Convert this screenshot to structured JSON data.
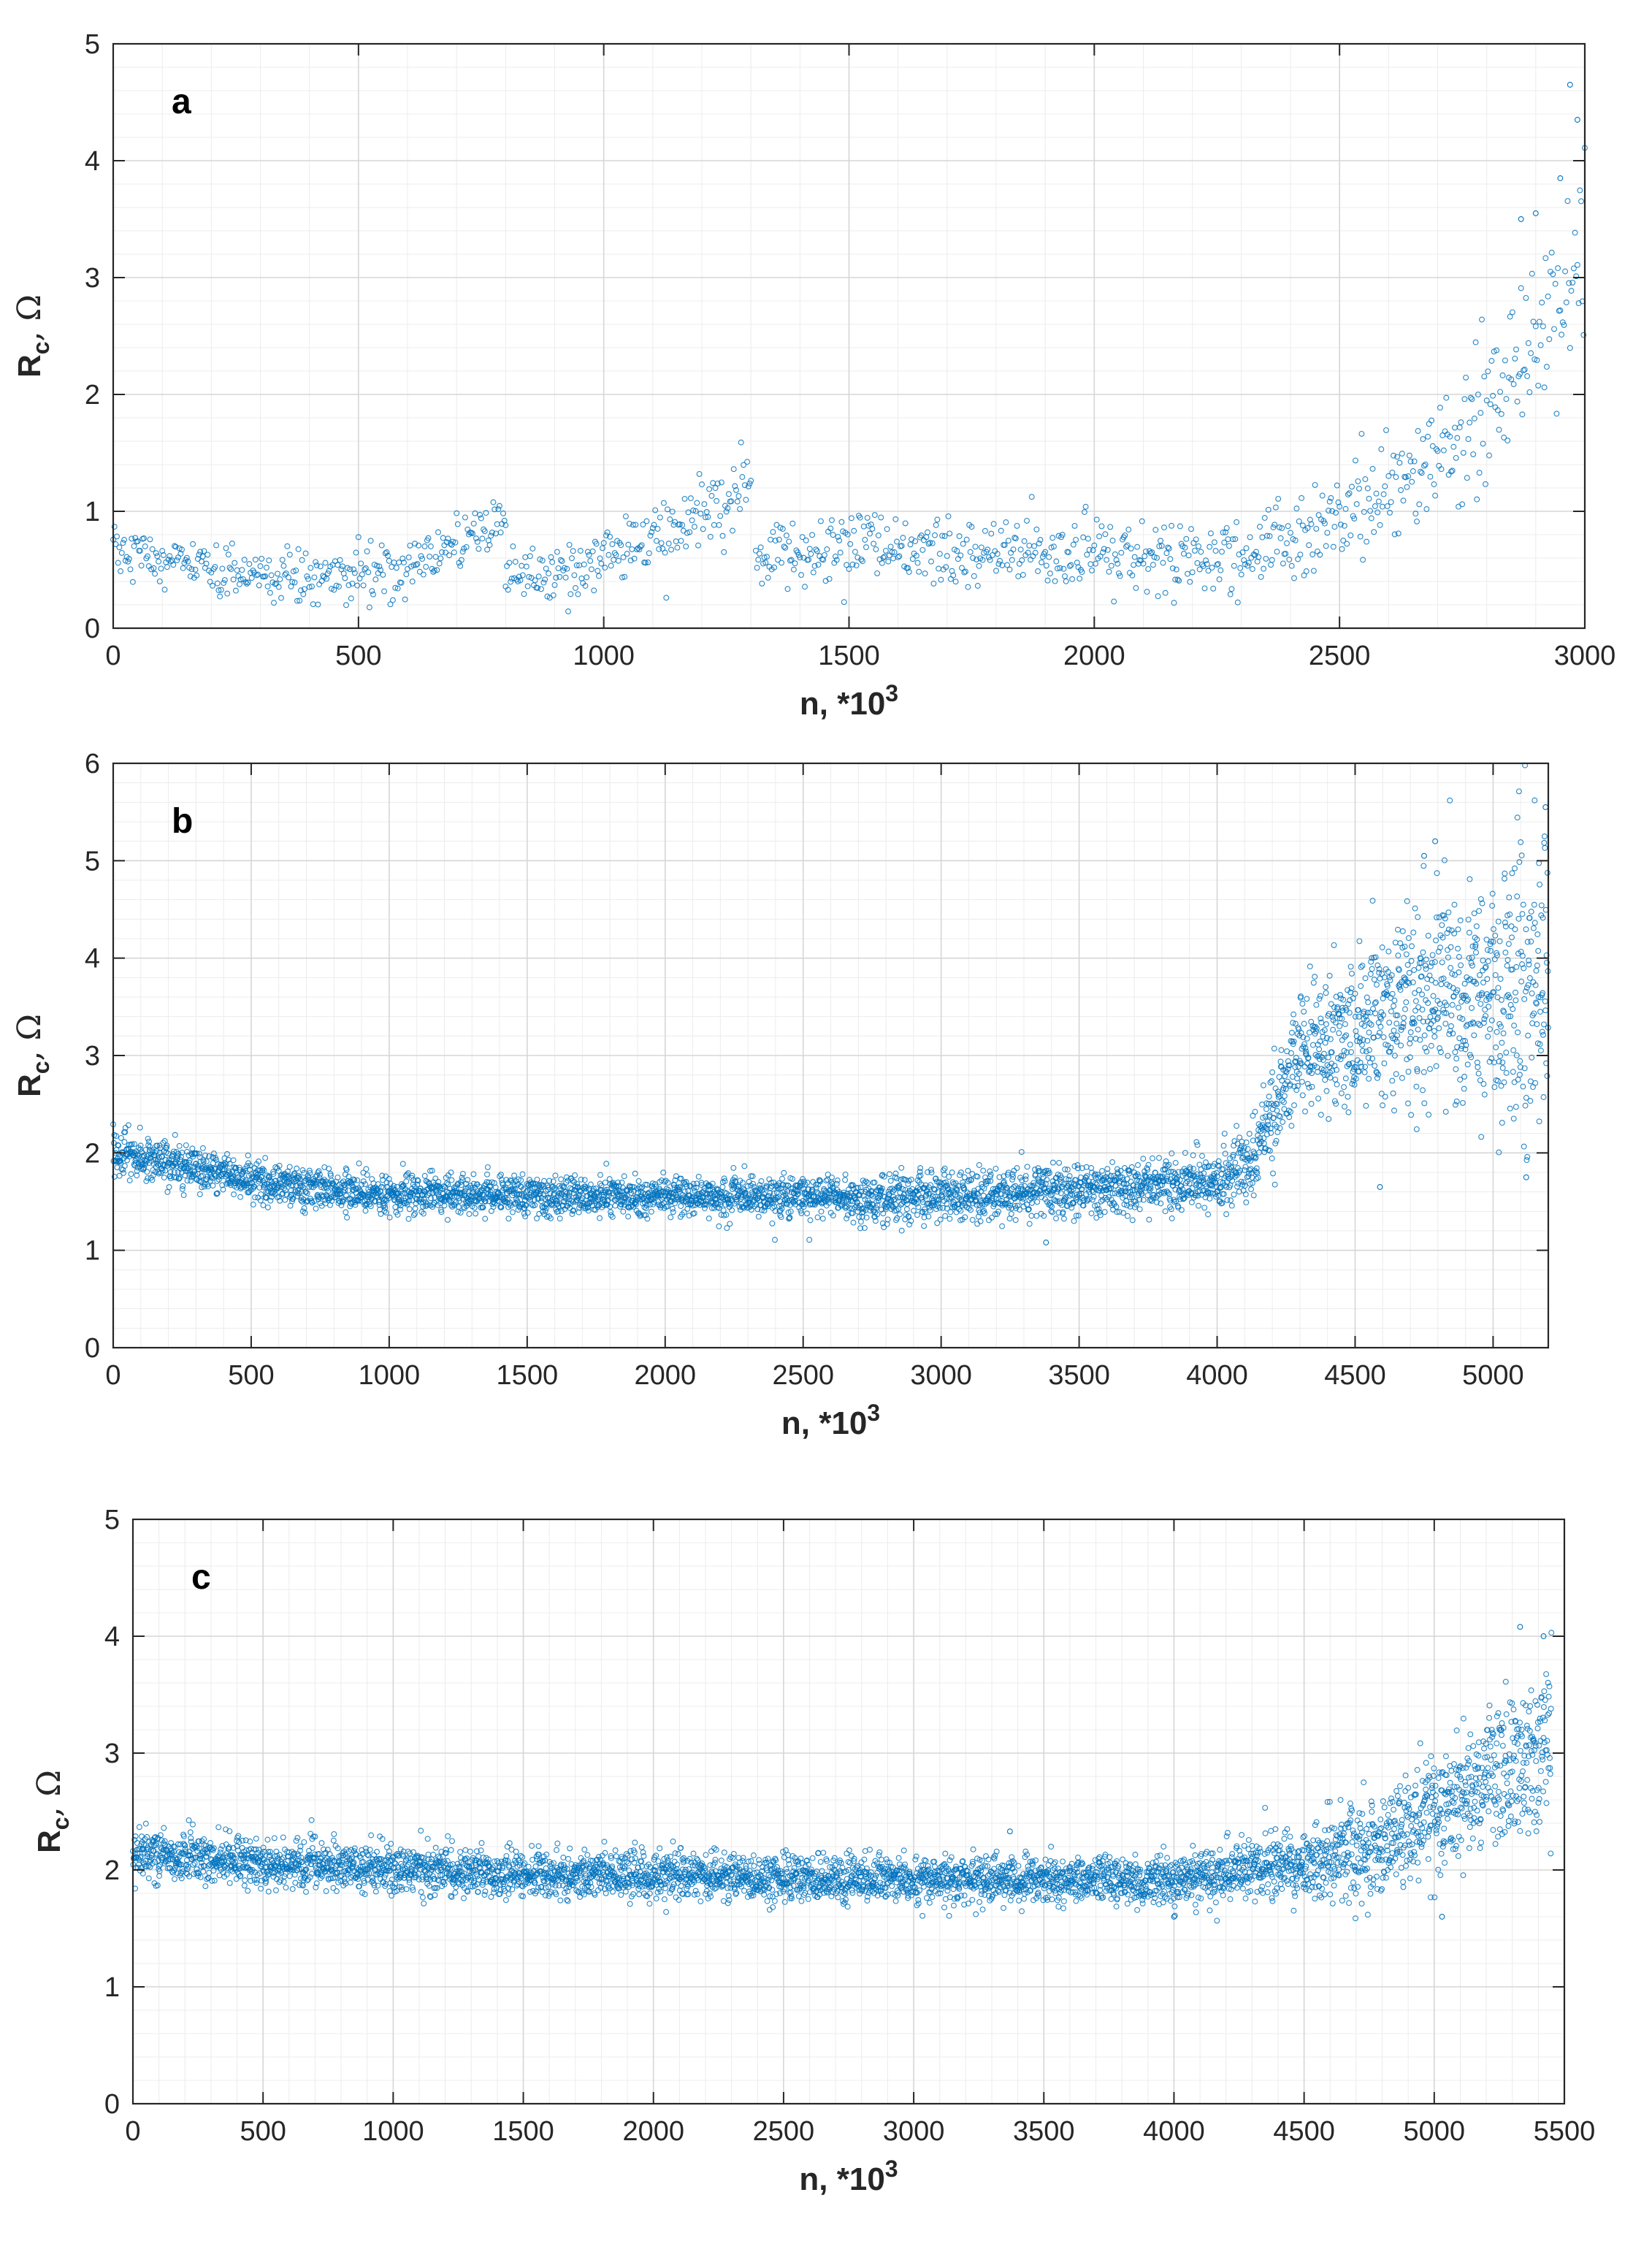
{
  "figure": {
    "marker_color": "#0072BD",
    "axis_color": "#262626"
  },
  "chart_data": [
    {
      "type": "scatter",
      "panel_label": "a",
      "xlabel": "n, *10",
      "xlabel_sup": "3",
      "ylabel": "R",
      "ylabel_sub": "c",
      "ylabel_unit": ", Ω",
      "xlim": [
        0,
        3000
      ],
      "ylim": [
        0,
        5
      ],
      "xticks": [
        0,
        500,
        1000,
        1500,
        2000,
        2500,
        3000
      ],
      "yticks": [
        0,
        1,
        2,
        3,
        4,
        5
      ],
      "x_step": 2.5,
      "segments": [
        {
          "x": [
            0,
            250,
            550,
            800
          ],
          "mean": [
            0.7,
            0.42,
            0.45,
            0.95
          ],
          "spread": [
            0.12,
            0.12,
            0.13,
            0.1
          ]
        },
        {
          "x": [
            800,
            950,
            1150,
            1300
          ],
          "mean": [
            0.42,
            0.5,
            0.85,
            1.2
          ],
          "spread": [
            0.1,
            0.12,
            0.14,
            0.14
          ]
        },
        {
          "x": [
            1310,
            1600,
            2000,
            2300,
            2500,
            2700,
            2850,
            3000
          ],
          "mean": [
            0.62,
            0.68,
            0.62,
            0.62,
            0.9,
            1.45,
            2.2,
            3.0
          ],
          "spread": [
            0.13,
            0.14,
            0.15,
            0.17,
            0.22,
            0.3,
            0.38,
            0.5
          ]
        }
      ],
      "outliers": [
        [
          2970,
          4.65
        ],
        [
          2985,
          4.35
        ],
        [
          2950,
          3.85
        ],
        [
          2900,
          3.55
        ],
        [
          2870,
          3.5
        ]
      ]
    },
    {
      "type": "scatter",
      "panel_label": "b",
      "xlabel": "n, *10",
      "xlabel_sup": "3",
      "ylabel": "R",
      "ylabel_sub": "c",
      "ylabel_unit": ", Ω",
      "xlim": [
        0,
        5200
      ],
      "ylim": [
        0,
        6
      ],
      "xticks": [
        0,
        500,
        1000,
        1500,
        2000,
        2500,
        3000,
        3500,
        4000,
        4500,
        5000
      ],
      "yticks": [
        0,
        1,
        2,
        3,
        4,
        5,
        6
      ],
      "x_step": 1.2,
      "segments": [
        {
          "x": [
            0,
            500,
            1000,
            2000,
            3000,
            3500,
            4000,
            4100,
            4200,
            4300,
            4500,
            4700,
            5000,
            5200
          ],
          "mean": [
            2.0,
            1.72,
            1.58,
            1.55,
            1.55,
            1.62,
            1.7,
            1.85,
            2.4,
            3.05,
            3.25,
            3.5,
            3.6,
            3.9
          ],
          "spread": [
            0.1,
            0.1,
            0.1,
            0.1,
            0.12,
            0.13,
            0.14,
            0.2,
            0.25,
            0.3,
            0.4,
            0.5,
            0.6,
            0.75
          ]
        }
      ],
      "outliers": [
        [
          5190,
          5.55
        ],
        [
          4790,
          5.2
        ],
        [
          4750,
          5.05
        ],
        [
          3380,
          1.08
        ],
        [
          4590,
          1.65
        ],
        [
          5120,
          1.75
        ]
      ]
    },
    {
      "type": "scatter",
      "panel_label": "c",
      "xlabel": "n, *10",
      "xlabel_sup": "3",
      "ylabel": "R",
      "ylabel_sub": "c",
      "ylabel_unit": ", Ω",
      "xlim": [
        0,
        5500
      ],
      "ylim": [
        0,
        5
      ],
      "xticks": [
        0,
        500,
        1000,
        1500,
        2000,
        2500,
        3000,
        3500,
        4000,
        4500,
        5000,
        5500
      ],
      "yticks": [
        0,
        1,
        2,
        3,
        4,
        5
      ],
      "x_step": 1.25,
      "segments": [
        {
          "x": [
            0,
            500,
            1000,
            2000,
            3000,
            3500,
            4000,
            4200,
            4500,
            4800,
            5000,
            5200,
            5450
          ],
          "mean": [
            2.15,
            2.05,
            2.0,
            1.95,
            1.92,
            1.92,
            1.9,
            2.0,
            2.05,
            2.2,
            2.45,
            2.75,
            3.1
          ],
          "spread": [
            0.1,
            0.1,
            0.1,
            0.1,
            0.1,
            0.1,
            0.1,
            0.12,
            0.16,
            0.2,
            0.25,
            0.3,
            0.4
          ]
        }
      ],
      "outliers": [
        [
          5330,
          4.08
        ],
        [
          5420,
          4.0
        ],
        [
          3370,
          2.33
        ],
        [
          4000,
          1.6
        ],
        [
          5030,
          1.6
        ]
      ]
    }
  ]
}
